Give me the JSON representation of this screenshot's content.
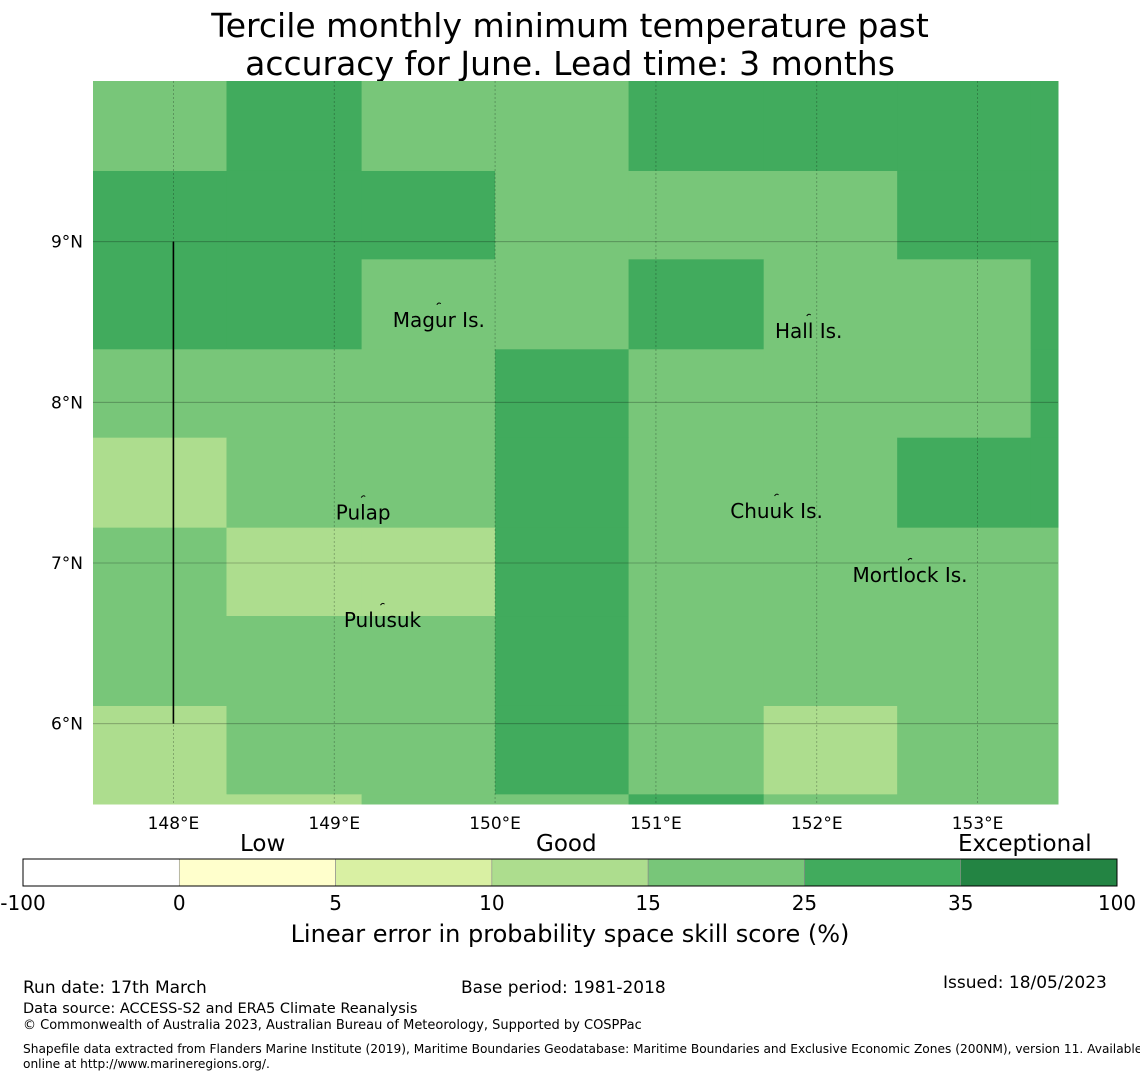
{
  "title": {
    "line1": "Tercile monthly minimum temperature past",
    "line2": "accuracy for June. Lead time: 3 months"
  },
  "map": {
    "lon_range": [
      147.5,
      153.5
    ],
    "lat_range": [
      5.5,
      10.0
    ],
    "lon_ticks": [
      {
        "value": 148,
        "label": "148°E"
      },
      {
        "value": 149,
        "label": "149°E"
      },
      {
        "value": 150,
        "label": "150°E"
      },
      {
        "value": 151,
        "label": "151°E"
      },
      {
        "value": 152,
        "label": "152°E"
      },
      {
        "value": 153,
        "label": "153°E"
      }
    ],
    "lat_ticks": [
      {
        "value": 9,
        "label": "9°N"
      },
      {
        "value": 8,
        "label": "8°N"
      },
      {
        "value": 7,
        "label": "7°N"
      },
      {
        "value": 6,
        "label": "6°N"
      }
    ],
    "col_edges": [
      147.5,
      148.33,
      149.17,
      150.0,
      150.83,
      151.67,
      152.5,
      153.33,
      153.5
    ],
    "row_edges": [
      10.0,
      9.44,
      8.89,
      8.33,
      7.78,
      7.22,
      6.67,
      6.11,
      5.56,
      5.5
    ],
    "grid": [
      [
        "g15",
        "g25",
        "g15",
        "g15",
        "g25",
        "g25",
        "g25",
        "g25"
      ],
      [
        "g25",
        "g25",
        "g25",
        "g15",
        "g15",
        "g15",
        "g25",
        "g25"
      ],
      [
        "g25",
        "g25",
        "g15",
        "g15",
        "g25",
        "g15",
        "g15",
        "g25"
      ],
      [
        "g15",
        "g15",
        "g15",
        "g25",
        "g15",
        "g15",
        "g15",
        "g25"
      ],
      [
        "g10",
        "g15",
        "g15",
        "g25",
        "g15",
        "g15",
        "g25",
        "g25"
      ],
      [
        "g15",
        "g10",
        "g10",
        "g25",
        "g15",
        "g15",
        "g15",
        "g15"
      ],
      [
        "g15",
        "g15",
        "g15",
        "g25",
        "g15",
        "g15",
        "g15",
        "g15"
      ],
      [
        "g10",
        "g15",
        "g15",
        "g25",
        "g15",
        "g10",
        "g15",
        "g15"
      ],
      [
        "g10",
        "g10",
        "g15",
        "g15",
        "g25",
        "g15",
        "g15",
        "g15"
      ]
    ],
    "boundary_line": {
      "lon": 148.0,
      "lat_from": 6.0,
      "lat_to": 9.0
    },
    "islands": [
      {
        "name": "Magur Is.",
        "lon": 149.65,
        "lat": 8.57
      },
      {
        "name": "Hall Is.",
        "lon": 151.95,
        "lat": 8.5
      },
      {
        "name": "Pulap",
        "lon": 149.18,
        "lat": 7.37
      },
      {
        "name": "Chuuk Is.",
        "lon": 151.75,
        "lat": 7.38
      },
      {
        "name": "Mortlock Is.",
        "lon": 152.58,
        "lat": 6.98
      },
      {
        "name": "Pulusuk",
        "lon": 149.3,
        "lat": 6.7
      }
    ]
  },
  "colorbar": {
    "category_labels": [
      "Low",
      "Good",
      "Exceptional"
    ],
    "bins": [
      {
        "from": "-100",
        "to": "0",
        "color": "#ffffff"
      },
      {
        "from": "0",
        "to": "5",
        "color": "#ffffcc"
      },
      {
        "from": "5",
        "to": "10",
        "color": "#d9f0a3"
      },
      {
        "from": "10",
        "to": "15",
        "color": "#addd8e"
      },
      {
        "from": "15",
        "to": "25",
        "color": "#78c679"
      },
      {
        "from": "25",
        "to": "35",
        "color": "#41ab5d"
      },
      {
        "from": "35",
        "to": "100",
        "color": "#238443"
      }
    ],
    "tick_labels": [
      "-100",
      "0",
      "5",
      "10",
      "15",
      "25",
      "35",
      "100"
    ],
    "caption": "Linear error in probability space skill score (%)"
  },
  "palette": {
    "g10": "#addd8e",
    "g15": "#78c679",
    "g25": "#41ab5d",
    "g35": "#238443"
  },
  "footer": {
    "run_date": "Run date: 17th March",
    "base_period": "Base period: 1981-2018",
    "issued": "Issued: 18/05/2023",
    "data_source": "Data source: ACCESS-S2 and ERA5 Climate Reanalysis",
    "copyright": "© Commonwealth of Australia 2023, Australian Bureau of Meteorology, Supported by COSPPac",
    "shapefile_line1": "Shapefile data extracted from Flanders Marine Institute (2019), Maritime Boundaries Geodatabase: Maritime Boundaries and Exclusive Economic Zones (200NM), version 11. Available",
    "shapefile_line2": "online at http://www.marineregions.org/."
  }
}
